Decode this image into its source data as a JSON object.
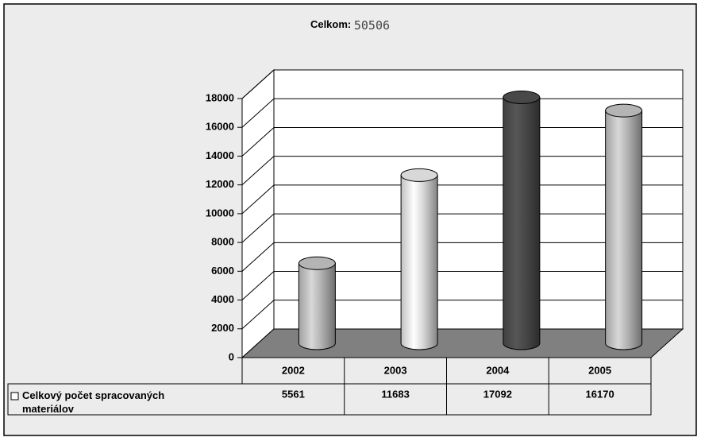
{
  "chart_data": {
    "type": "bar",
    "title": "Celkom:",
    "total": 50506,
    "categories": [
      "2002",
      "2003",
      "2004",
      "2005"
    ],
    "series": [
      {
        "name": "Celkový počet spracovaných materiálov",
        "values": [
          5561,
          11683,
          17092,
          16170
        ]
      }
    ],
    "colors": [
      "#c8c8c8",
      "#f0f0f0",
      "#505050",
      "#c8c8c8"
    ],
    "ylim": [
      0,
      18000
    ],
    "yticks": [
      0,
      2000,
      4000,
      6000,
      8000,
      10000,
      12000,
      14000,
      16000,
      18000
    ],
    "grid": true
  }
}
